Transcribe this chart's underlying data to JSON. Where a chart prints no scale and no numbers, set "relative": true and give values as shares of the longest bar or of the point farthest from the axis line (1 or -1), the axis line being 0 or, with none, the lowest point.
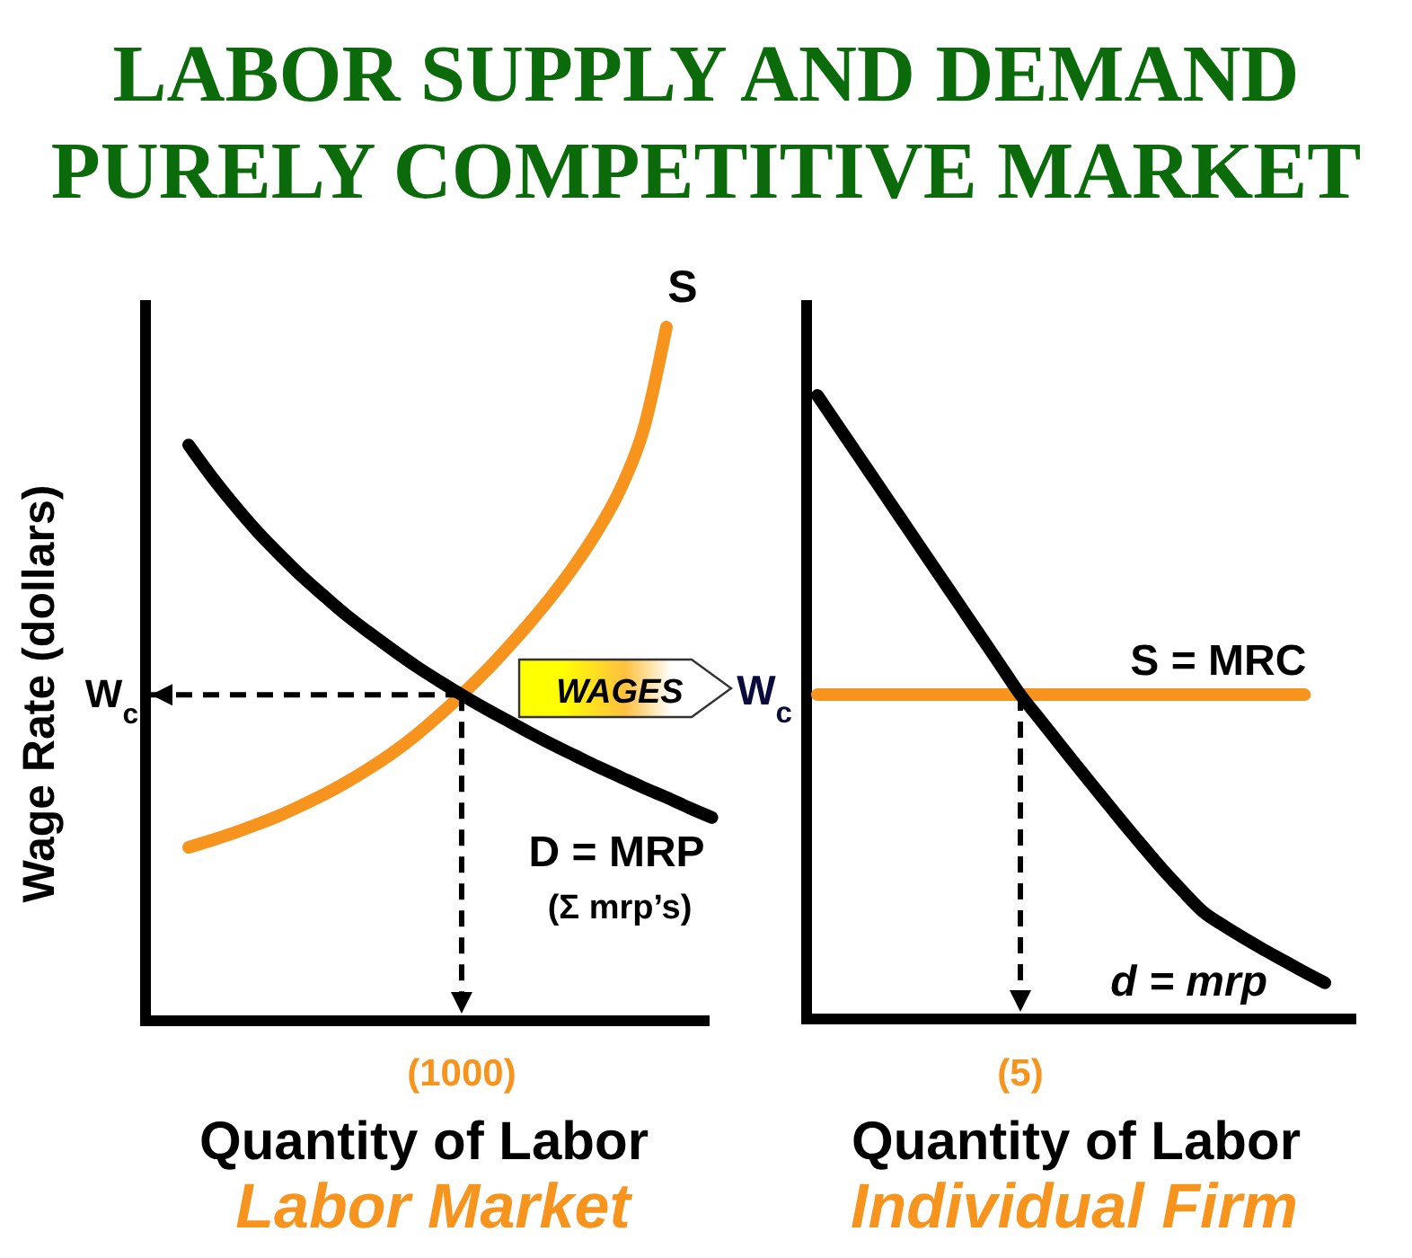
{
  "chart_data": [
    {
      "type": "line",
      "title": "LABOR SUPPLY AND DEMAND\nPURELY COMPETITIVE MARKET",
      "xlabel": "Quantity of Labor",
      "ylabel": "Wage Rate (dollars)",
      "relative": true,
      "categories": [
        null,
        null,
        null,
        null,
        null,
        null,
        null,
        null,
        null,
        null,
        null,
        null,
        null,
        null,
        null,
        null,
        null,
        null,
        null,
        null,
        null,
        null,
        null,
        null
      ],
      "series": [
        {
          "name": "S",
          "color": "#f7941e",
          "values": [
            0.25,
            0.26,
            0.271,
            0.283,
            0.296,
            0.311,
            0.327,
            0.345,
            0.365,
            0.387,
            0.412,
            0.44,
            0.47,
            0.502,
            0.537,
            0.574,
            0.614,
            0.658,
            0.708,
            0.768,
            0.853,
            1.0,
            null,
            null
          ]
        },
        {
          "name": "D = MRP",
          "color": "#000000",
          "values": [
            0.83,
            0.785,
            0.744,
            0.706,
            0.672,
            0.64,
            0.611,
            0.583,
            0.558,
            0.534,
            0.511,
            0.49,
            0.47,
            0.451,
            0.433,
            0.415,
            0.398,
            0.382,
            0.366,
            0.351,
            0.336,
            0.322,
            0.307,
            0.293
          ]
        }
      ],
      "ref_lines": [
        {
          "axis": "y",
          "value": 0.47,
          "label": "W$_{c}$",
          "color": "#000000",
          "line_style": "dashed"
        },
        {
          "axis": "x",
          "value": "(1000)",
          "color": "#000000",
          "line_style": "dashed"
        }
      ],
      "annotations": [
        "(Σ mrp’s)",
        "WAGES",
        "Labor Market"
      ]
    },
    {
      "type": "line",
      "xlabel": "Quantity of Labor",
      "relative": true,
      "categories": [
        null,
        null,
        null,
        null,
        null,
        null,
        null,
        null,
        null,
        null,
        null,
        null,
        null,
        null,
        null,
        null,
        null,
        null,
        null,
        null,
        null,
        null,
        null,
        null,
        null,
        null
      ],
      "series": [
        {
          "name": "S = MRC",
          "color": "#f7941e",
          "values": [
            0.52,
            0.52,
            0.52,
            0.52,
            0.52,
            0.52,
            0.52,
            0.52,
            0.52,
            0.52,
            0.52,
            0.52,
            0.52,
            0.52,
            0.52,
            0.52,
            0.52,
            0.52,
            0.52,
            0.52,
            0.52,
            0.52,
            0.52,
            0.52,
            0.52,
            null
          ]
        },
        {
          "name": "d = mrp",
          "color": "#000000",
          "values": [
            1.0,
            0.952,
            0.904,
            0.856,
            0.808,
            0.76,
            0.712,
            0.664,
            0.616,
            0.568,
            0.52,
            0.479,
            0.438,
            0.397,
            0.357,
            0.317,
            0.278,
            0.24,
            0.205,
            0.172,
            0.15,
            0.13,
            0.111,
            0.093,
            0.075,
            0.058
          ]
        }
      ],
      "ref_lines": [
        {
          "axis": "x",
          "value": "(5)",
          "color": "#000000",
          "line_style": "dashed"
        }
      ],
      "annotations": [
        "W$_{c}$",
        "Individual Firm"
      ]
    }
  ]
}
